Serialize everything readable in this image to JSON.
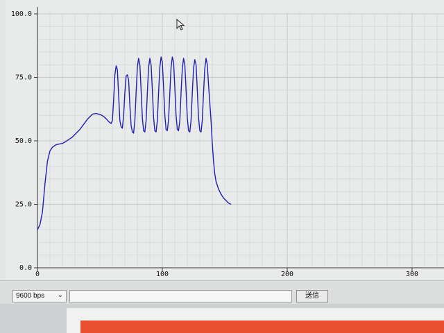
{
  "plotter": {
    "chart_data": {
      "type": "line",
      "title": "",
      "xlabel": "",
      "ylabel": "",
      "xlim": [
        0,
        325
      ],
      "ylim": [
        0,
        100
      ],
      "x_ticks": [
        "0",
        "100",
        "200",
        "300"
      ],
      "y_ticks": [
        "0.0",
        "25.0",
        "50.0",
        "75.0",
        "100.0"
      ],
      "grid": true,
      "legend": "none",
      "series": [
        {
          "color": "#1f1fb0",
          "points": [
            [
              0,
              15
            ],
            [
              2,
              17
            ],
            [
              4,
              22
            ],
            [
              6,
              33
            ],
            [
              8,
              42
            ],
            [
              10,
              46
            ],
            [
              12,
              47.5
            ],
            [
              15,
              48.5
            ],
            [
              18,
              48.8
            ],
            [
              20,
              49
            ],
            [
              22,
              49.5
            ],
            [
              25,
              50.5
            ],
            [
              28,
              51.5
            ],
            [
              31,
              53
            ],
            [
              34,
              54.5
            ],
            [
              37,
              56.5
            ],
            [
              40,
              58.5
            ],
            [
              42,
              59.5
            ],
            [
              44,
              60.5
            ],
            [
              47,
              60.8
            ],
            [
              49,
              60.5
            ],
            [
              51,
              60.2
            ],
            [
              53,
              59.6
            ],
            [
              55,
              58.7
            ],
            [
              57,
              57.6
            ],
            [
              59,
              56.8
            ],
            [
              60,
              58
            ],
            [
              61,
              66
            ],
            [
              62,
              76
            ],
            [
              63,
              79.5
            ],
            [
              64,
              78
            ],
            [
              65,
              68
            ],
            [
              66,
              58
            ],
            [
              67,
              55.5
            ],
            [
              68,
              55
            ],
            [
              69,
              60
            ],
            [
              70,
              69
            ],
            [
              71,
              75.5
            ],
            [
              72,
              76
            ],
            [
              73,
              74
            ],
            [
              74,
              64
            ],
            [
              75,
              56
            ],
            [
              76,
              53.5
            ],
            [
              77,
              53
            ],
            [
              78,
              58
            ],
            [
              79,
              69
            ],
            [
              80,
              79
            ],
            [
              81,
              82.5
            ],
            [
              82,
              80
            ],
            [
              83,
              70
            ],
            [
              84,
              59
            ],
            [
              85,
              54
            ],
            [
              86,
              53.5
            ],
            [
              87,
              58
            ],
            [
              88,
              69
            ],
            [
              89,
              79
            ],
            [
              90,
              82.5
            ],
            [
              91,
              80
            ],
            [
              92,
              70
            ],
            [
              93,
              59
            ],
            [
              94,
              54
            ],
            [
              95,
              53.5
            ],
            [
              96,
              58
            ],
            [
              97,
              69
            ],
            [
              98,
              79
            ],
            [
              99,
              83
            ],
            [
              100,
              81
            ],
            [
              101,
              71
            ],
            [
              102,
              60
            ],
            [
              103,
              54.5
            ],
            [
              104,
              54
            ],
            [
              105,
              58.5
            ],
            [
              106,
              69
            ],
            [
              107,
              79
            ],
            [
              108,
              83
            ],
            [
              109,
              81
            ],
            [
              110,
              71
            ],
            [
              111,
              60
            ],
            [
              112,
              54.5
            ],
            [
              113,
              54
            ],
            [
              114,
              58
            ],
            [
              115,
              69
            ],
            [
              116,
              78.5
            ],
            [
              117,
              82.5
            ],
            [
              118,
              80
            ],
            [
              119,
              70
            ],
            [
              120,
              59
            ],
            [
              121,
              54
            ],
            [
              122,
              53.5
            ],
            [
              123,
              58
            ],
            [
              124,
              69
            ],
            [
              125,
              78.5
            ],
            [
              126,
              82
            ],
            [
              127,
              80
            ],
            [
              128,
              70
            ],
            [
              129,
              59
            ],
            [
              130,
              54
            ],
            [
              131,
              53.5
            ],
            [
              132,
              58
            ],
            [
              133,
              69
            ],
            [
              134,
              78.5
            ],
            [
              135,
              82.5
            ],
            [
              136,
              80
            ],
            [
              137,
              72
            ],
            [
              138,
              65
            ],
            [
              139,
              58
            ],
            [
              140,
              49
            ],
            [
              141,
              42
            ],
            [
              142,
              37
            ],
            [
              143,
              34
            ],
            [
              145,
              31
            ],
            [
              147,
              29
            ],
            [
              149,
              27.5
            ],
            [
              151,
              26.5
            ],
            [
              153,
              25.5
            ],
            [
              155,
              25
            ]
          ]
        }
      ]
    }
  },
  "controls": {
    "baud_rate": "9600 bps",
    "message_value": "",
    "send_label": "送信"
  },
  "background": {
    "banner_color": "#e8502f"
  }
}
